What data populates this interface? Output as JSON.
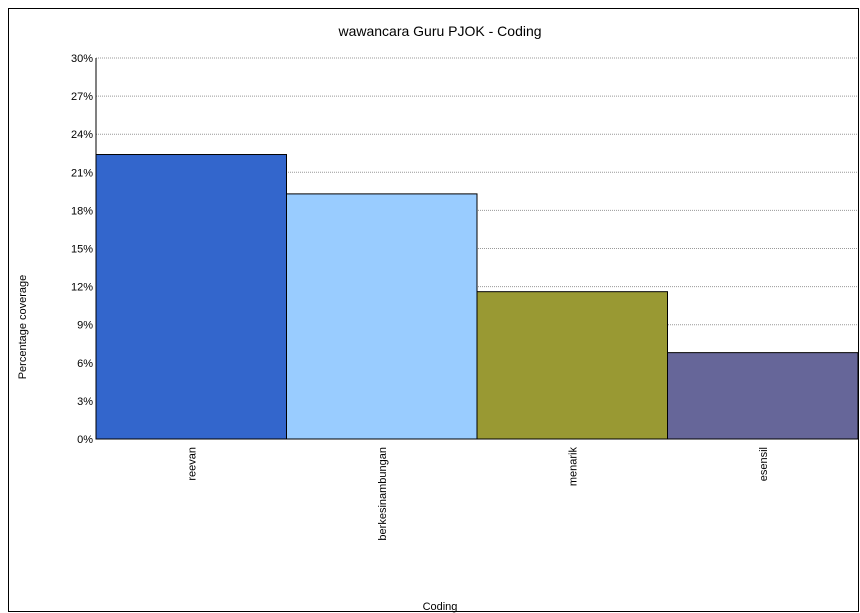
{
  "chart_data": {
    "type": "bar",
    "title": "wawancara Guru PJOK - Coding",
    "xlabel": "Coding",
    "ylabel": "Percentage coverage",
    "categories": [
      "reevan",
      "berkesinambungan",
      "menarik",
      "esensil"
    ],
    "values": [
      22.4,
      19.3,
      11.6,
      6.8
    ],
    "ylim": [
      0,
      30
    ],
    "yticks": [
      "0%",
      "3%",
      "6%",
      "9%",
      "12%",
      "15%",
      "18%",
      "21%",
      "24%",
      "27%",
      "30%"
    ],
    "ytick_values": [
      0,
      3,
      6,
      9,
      12,
      15,
      18,
      21,
      24,
      27,
      30
    ],
    "grid": true,
    "colors": [
      "#3366cc",
      "#99ccff",
      "#999933",
      "#666699"
    ]
  }
}
